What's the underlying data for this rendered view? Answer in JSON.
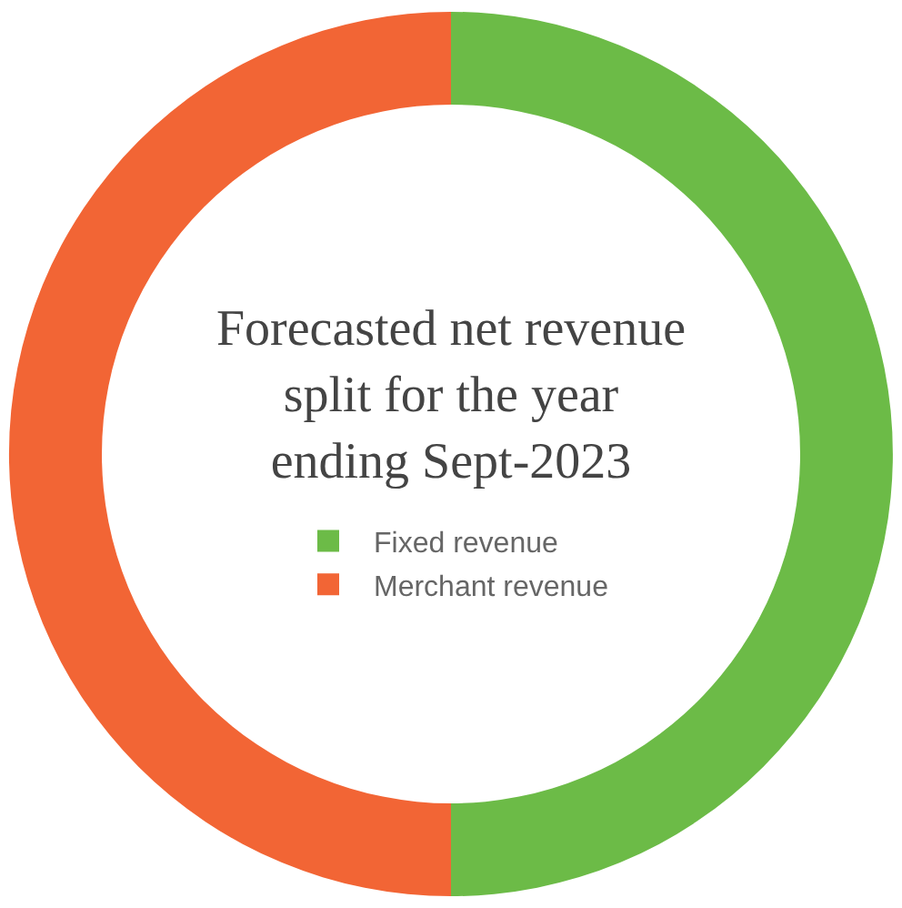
{
  "chart_data": {
    "type": "donut",
    "title": "Forecasted net revenue split for the year ending Sept-2023",
    "categories": [
      "Fixed revenue",
      "Merchant revenue"
    ],
    "values": [
      50,
      50
    ],
    "colors": [
      "#6cbb47",
      "#f26535"
    ],
    "legend": "center"
  }
}
